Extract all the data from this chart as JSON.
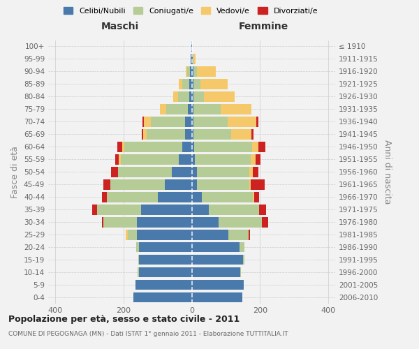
{
  "age_groups": [
    "0-4",
    "5-9",
    "10-14",
    "15-19",
    "20-24",
    "25-29",
    "30-34",
    "35-39",
    "40-44",
    "45-49",
    "50-54",
    "55-59",
    "60-64",
    "65-69",
    "70-74",
    "75-79",
    "80-84",
    "85-89",
    "90-94",
    "95-99",
    "100+"
  ],
  "birth_years": [
    "2006-2010",
    "2001-2005",
    "1996-2000",
    "1991-1995",
    "1986-1990",
    "1981-1985",
    "1976-1980",
    "1971-1975",
    "1966-1970",
    "1961-1965",
    "1956-1960",
    "1951-1955",
    "1946-1950",
    "1941-1945",
    "1936-1940",
    "1931-1935",
    "1926-1930",
    "1921-1925",
    "1916-1920",
    "1911-1915",
    "≤ 1910"
  ],
  "colors": {
    "celibi": "#4a7aab",
    "coniugati": "#b5cc96",
    "vedovi": "#f5c96a",
    "divorziati": "#cc2222"
  },
  "males": {
    "celibi": [
      170,
      165,
      155,
      155,
      155,
      160,
      160,
      148,
      100,
      78,
      58,
      38,
      28,
      20,
      20,
      12,
      8,
      8,
      5,
      3,
      2
    ],
    "coniugati": [
      0,
      0,
      3,
      2,
      8,
      28,
      98,
      128,
      148,
      160,
      158,
      170,
      170,
      112,
      100,
      62,
      32,
      20,
      8,
      0,
      0
    ],
    "vedovi": [
      0,
      0,
      0,
      0,
      0,
      5,
      0,
      0,
      0,
      0,
      0,
      5,
      5,
      10,
      20,
      20,
      15,
      10,
      5,
      0,
      0
    ],
    "divorziati": [
      0,
      0,
      0,
      0,
      0,
      0,
      5,
      15,
      15,
      20,
      20,
      10,
      15,
      5,
      5,
      0,
      0,
      0,
      0,
      0,
      0
    ]
  },
  "females": {
    "nubili": [
      148,
      153,
      143,
      150,
      140,
      108,
      78,
      50,
      30,
      15,
      15,
      10,
      8,
      5,
      5,
      5,
      5,
      5,
      5,
      3,
      2
    ],
    "coniugate": [
      0,
      0,
      2,
      5,
      15,
      58,
      128,
      148,
      148,
      153,
      153,
      163,
      168,
      110,
      100,
      80,
      30,
      20,
      10,
      3,
      0
    ],
    "vedove": [
      0,
      0,
      0,
      0,
      0,
      0,
      0,
      0,
      5,
      5,
      10,
      15,
      20,
      60,
      85,
      90,
      90,
      80,
      55,
      5,
      0
    ],
    "divorziate": [
      0,
      0,
      0,
      0,
      0,
      5,
      18,
      20,
      15,
      40,
      18,
      13,
      20,
      5,
      5,
      0,
      0,
      0,
      0,
      0,
      0
    ]
  },
  "maschi_label": "Maschi",
  "femmine_label": "Femmine",
  "title": "Popolazione per età, sesso e stato civile - 2011",
  "subtitle": "COMUNE DI PEGOGNAGA (MN) - Dati ISTAT 1° gennaio 2011 - Elaborazione TUTTITALIA.IT",
  "ylabel_left": "Fasce di età",
  "ylabel_right": "Anni di nascita",
  "xlim": 420,
  "background_color": "#f2f2f2",
  "legend_labels": [
    "Celibi/Nubili",
    "Coniugati/e",
    "Vedovi/e",
    "Divorziati/e"
  ]
}
